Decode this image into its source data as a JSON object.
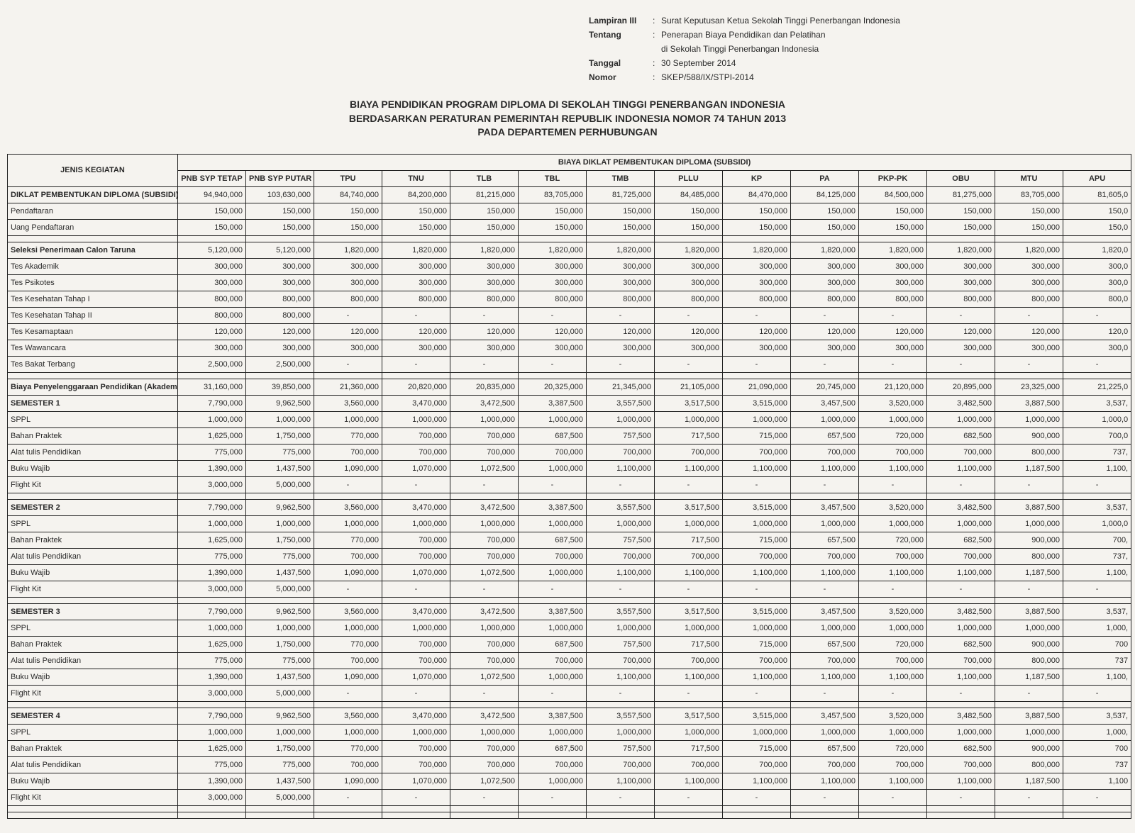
{
  "meta": {
    "lampiran_label": "Lampiran III",
    "lampiran_value": "Surat Keputusan Ketua Sekolah Tinggi Penerbangan Indonesia",
    "tentang_label": "Tentang",
    "tentang_value1": "Penerapan Biaya Pendidikan dan Pelatihan",
    "tentang_value2": "di Sekolah Tinggi Penerbangan Indonesia",
    "tanggal_label": "Tanggal",
    "tanggal_value": "30 September 2014",
    "nomor_label": "Nomor",
    "nomor_value": "SKEP/588/IX/STPI-2014"
  },
  "title": {
    "line1": "BIAYA PENDIDIKAN PROGRAM DIPLOMA DI SEKOLAH TINGGI PENERBANGAN INDONESIA",
    "line2": "BERDASARKAN  PERATURAN PEMERINTAH  REPUBLIK INDONESIA NOMOR 74 TAHUN 2013",
    "line3": "PADA DEPARTEMEN PERHUBUNGAN"
  },
  "table": {
    "head": {
      "col0": "JENIS KEGIATAN",
      "group": "BIAYA DIKLAT PEMBENTUKAN DIPLOMA  (SUBSIDI)",
      "cols": [
        "PNB SYP TETAP",
        "PNB SYP PUTAR",
        "TPU",
        "TNU",
        "TLB",
        "TBL",
        "TMB",
        "PLLU",
        "KP",
        "PA",
        "PKP-PK",
        "OBU",
        "MTU",
        "APU"
      ]
    },
    "rows": [
      {
        "bold": true,
        "label": "DIKLAT PEMBENTUKAN DIPLOMA (SUBSIDI)",
        "v": [
          "94,940,000",
          "103,630,000",
          "84,740,000",
          "84,200,000",
          "81,215,000",
          "83,705,000",
          "81,725,000",
          "84,485,000",
          "84,470,000",
          "84,125,000",
          "84,500,000",
          "81,275,000",
          "83,705,000",
          "81,605,0"
        ]
      },
      {
        "label": "Pendaftaran",
        "v": [
          "150,000",
          "150,000",
          "150,000",
          "150,000",
          "150,000",
          "150,000",
          "150,000",
          "150,000",
          "150,000",
          "150,000",
          "150,000",
          "150,000",
          "150,000",
          "150,0"
        ]
      },
      {
        "label": "Uang Pendaftaran",
        "v": [
          "150,000",
          "150,000",
          "150,000",
          "150,000",
          "150,000",
          "150,000",
          "150,000",
          "150,000",
          "150,000",
          "150,000",
          "150,000",
          "150,000",
          "150,000",
          "150,0"
        ]
      },
      {
        "blank": true
      },
      {
        "bold": true,
        "label": "Seleksi Penerimaan Calon Taruna",
        "v": [
          "5,120,000",
          "5,120,000",
          "1,820,000",
          "1,820,000",
          "1,820,000",
          "1,820,000",
          "1,820,000",
          "1,820,000",
          "1,820,000",
          "1,820,000",
          "1,820,000",
          "1,820,000",
          "1,820,000",
          "1,820,0"
        ]
      },
      {
        "label": "Tes Akademik",
        "v": [
          "300,000",
          "300,000",
          "300,000",
          "300,000",
          "300,000",
          "300,000",
          "300,000",
          "300,000",
          "300,000",
          "300,000",
          "300,000",
          "300,000",
          "300,000",
          "300,0"
        ]
      },
      {
        "label": "Tes Psikotes",
        "v": [
          "300,000",
          "300,000",
          "300,000",
          "300,000",
          "300,000",
          "300,000",
          "300,000",
          "300,000",
          "300,000",
          "300,000",
          "300,000",
          "300,000",
          "300,000",
          "300,0"
        ]
      },
      {
        "label": "Tes Kesehatan Tahap I",
        "v": [
          "800,000",
          "800,000",
          "800,000",
          "800,000",
          "800,000",
          "800,000",
          "800,000",
          "800,000",
          "800,000",
          "800,000",
          "800,000",
          "800,000",
          "800,000",
          "800,0"
        ]
      },
      {
        "label": "Tes Kesehatan Tahap II",
        "v": [
          "800,000",
          "800,000",
          "-",
          "-",
          "-",
          "-",
          "-",
          "-",
          "-",
          "-",
          "-",
          "-",
          "-",
          "-"
        ]
      },
      {
        "label": "Tes Kesamaptaan",
        "v": [
          "120,000",
          "120,000",
          "120,000",
          "120,000",
          "120,000",
          "120,000",
          "120,000",
          "120,000",
          "120,000",
          "120,000",
          "120,000",
          "120,000",
          "120,000",
          "120,0"
        ]
      },
      {
        "label": "Tes Wawancara",
        "v": [
          "300,000",
          "300,000",
          "300,000",
          "300,000",
          "300,000",
          "300,000",
          "300,000",
          "300,000",
          "300,000",
          "300,000",
          "300,000",
          "300,000",
          "300,000",
          "300,0"
        ]
      },
      {
        "label": "Tes Bakat Terbang",
        "v": [
          "2,500,000",
          "2,500,000",
          "-",
          "-",
          "-",
          "-",
          "-",
          "-",
          "-",
          "-",
          "-",
          "-",
          "-",
          "-"
        ]
      },
      {
        "blank": true
      },
      {
        "bold": true,
        "label": "Biaya Penyelenggaraan Pendidikan (Akademis)",
        "v": [
          "31,160,000",
          "39,850,000",
          "21,360,000",
          "20,820,000",
          "20,835,000",
          "20,325,000",
          "21,345,000",
          "21,105,000",
          "21,090,000",
          "20,745,000",
          "21,120,000",
          "20,895,000",
          "23,325,000",
          "21,225,0"
        ]
      },
      {
        "bold": true,
        "label": "SEMESTER 1",
        "v": [
          "7,790,000",
          "9,962,500",
          "3,560,000",
          "3,470,000",
          "3,472,500",
          "3,387,500",
          "3,557,500",
          "3,517,500",
          "3,515,000",
          "3,457,500",
          "3,520,000",
          "3,482,500",
          "3,887,500",
          "3,537,"
        ]
      },
      {
        "label": "SPPL",
        "v": [
          "1,000,000",
          "1,000,000",
          "1,000,000",
          "1,000,000",
          "1,000,000",
          "1,000,000",
          "1,000,000",
          "1,000,000",
          "1,000,000",
          "1,000,000",
          "1,000,000",
          "1,000,000",
          "1,000,000",
          "1,000,0"
        ]
      },
      {
        "label": "Bahan Praktek",
        "v": [
          "1,625,000",
          "1,750,000",
          "770,000",
          "700,000",
          "700,000",
          "687,500",
          "757,500",
          "717,500",
          "715,000",
          "657,500",
          "720,000",
          "682,500",
          "900,000",
          "700,0"
        ]
      },
      {
        "label": "Alat tulis Pendidikan",
        "v": [
          "775,000",
          "775,000",
          "700,000",
          "700,000",
          "700,000",
          "700,000",
          "700,000",
          "700,000",
          "700,000",
          "700,000",
          "700,000",
          "700,000",
          "800,000",
          "737,"
        ]
      },
      {
        "label": "Buku Wajib",
        "v": [
          "1,390,000",
          "1,437,500",
          "1,090,000",
          "1,070,000",
          "1,072,500",
          "1,000,000",
          "1,100,000",
          "1,100,000",
          "1,100,000",
          "1,100,000",
          "1,100,000",
          "1,100,000",
          "1,187,500",
          "1,100,"
        ]
      },
      {
        "label": "Flight Kit",
        "v": [
          "3,000,000",
          "5,000,000",
          "-",
          "-",
          "-",
          "-",
          "-",
          "-",
          "-",
          "-",
          "-",
          "-",
          "-",
          "-"
        ]
      },
      {
        "blank": true
      },
      {
        "bold": true,
        "label": "SEMESTER 2",
        "v": [
          "7,790,000",
          "9,962,500",
          "3,560,000",
          "3,470,000",
          "3,472,500",
          "3,387,500",
          "3,557,500",
          "3,517,500",
          "3,515,000",
          "3,457,500",
          "3,520,000",
          "3,482,500",
          "3,887,500",
          "3,537,"
        ]
      },
      {
        "label": "SPPL",
        "v": [
          "1,000,000",
          "1,000,000",
          "1,000,000",
          "1,000,000",
          "1,000,000",
          "1,000,000",
          "1,000,000",
          "1,000,000",
          "1,000,000",
          "1,000,000",
          "1,000,000",
          "1,000,000",
          "1,000,000",
          "1,000,0"
        ]
      },
      {
        "label": "Bahan Praktek",
        "v": [
          "1,625,000",
          "1,750,000",
          "770,000",
          "700,000",
          "700,000",
          "687,500",
          "757,500",
          "717,500",
          "715,000",
          "657,500",
          "720,000",
          "682,500",
          "900,000",
          "700,"
        ]
      },
      {
        "label": "Alat tulis Pendidikan",
        "v": [
          "775,000",
          "775,000",
          "700,000",
          "700,000",
          "700,000",
          "700,000",
          "700,000",
          "700,000",
          "700,000",
          "700,000",
          "700,000",
          "700,000",
          "800,000",
          "737,"
        ]
      },
      {
        "label": "Buku Wajib",
        "v": [
          "1,390,000",
          "1,437,500",
          "1,090,000",
          "1,070,000",
          "1,072,500",
          "1,000,000",
          "1,100,000",
          "1,100,000",
          "1,100,000",
          "1,100,000",
          "1,100,000",
          "1,100,000",
          "1,187,500",
          "1,100,"
        ]
      },
      {
        "label": "Flight Kit",
        "v": [
          "3,000,000",
          "5,000,000",
          "-",
          "-",
          "-",
          "-",
          "-",
          "-",
          "-",
          "-",
          "-",
          "-",
          "-",
          "-"
        ]
      },
      {
        "blank": true
      },
      {
        "bold": true,
        "label": "SEMESTER 3",
        "v": [
          "7,790,000",
          "9,962,500",
          "3,560,000",
          "3,470,000",
          "3,472,500",
          "3,387,500",
          "3,557,500",
          "3,517,500",
          "3,515,000",
          "3,457,500",
          "3,520,000",
          "3,482,500",
          "3,887,500",
          "3,537,"
        ]
      },
      {
        "label": "SPPL",
        "v": [
          "1,000,000",
          "1,000,000",
          "1,000,000",
          "1,000,000",
          "1,000,000",
          "1,000,000",
          "1,000,000",
          "1,000,000",
          "1,000,000",
          "1,000,000",
          "1,000,000",
          "1,000,000",
          "1,000,000",
          "1,000,"
        ]
      },
      {
        "label": "Bahan Praktek",
        "v": [
          "1,625,000",
          "1,750,000",
          "770,000",
          "700,000",
          "700,000",
          "687,500",
          "757,500",
          "717,500",
          "715,000",
          "657,500",
          "720,000",
          "682,500",
          "900,000",
          "700"
        ]
      },
      {
        "label": "Alat tulis Pendidikan",
        "v": [
          "775,000",
          "775,000",
          "700,000",
          "700,000",
          "700,000",
          "700,000",
          "700,000",
          "700,000",
          "700,000",
          "700,000",
          "700,000",
          "700,000",
          "800,000",
          "737"
        ]
      },
      {
        "label": "Buku Wajib",
        "v": [
          "1,390,000",
          "1,437,500",
          "1,090,000",
          "1,070,000",
          "1,072,500",
          "1,000,000",
          "1,100,000",
          "1,100,000",
          "1,100,000",
          "1,100,000",
          "1,100,000",
          "1,100,000",
          "1,187,500",
          "1,100,"
        ]
      },
      {
        "label": "Flight Kit",
        "v": [
          "3,000,000",
          "5,000,000",
          "-",
          "-",
          "-",
          "-",
          "-",
          "-",
          "-",
          "-",
          "-",
          "-",
          "-",
          "-"
        ]
      },
      {
        "blank": true
      },
      {
        "bold": true,
        "label": "SEMESTER 4",
        "v": [
          "7,790,000",
          "9,962,500",
          "3,560,000",
          "3,470,000",
          "3,472,500",
          "3,387,500",
          "3,557,500",
          "3,517,500",
          "3,515,000",
          "3,457,500",
          "3,520,000",
          "3,482,500",
          "3,887,500",
          "3,537,"
        ]
      },
      {
        "label": "SPPL",
        "v": [
          "1,000,000",
          "1,000,000",
          "1,000,000",
          "1,000,000",
          "1,000,000",
          "1,000,000",
          "1,000,000",
          "1,000,000",
          "1,000,000",
          "1,000,000",
          "1,000,000",
          "1,000,000",
          "1,000,000",
          "1,000,"
        ]
      },
      {
        "label": "Bahan Praktek",
        "v": [
          "1,625,000",
          "1,750,000",
          "770,000",
          "700,000",
          "700,000",
          "687,500",
          "757,500",
          "717,500",
          "715,000",
          "657,500",
          "720,000",
          "682,500",
          "900,000",
          "700"
        ]
      },
      {
        "label": "Alat tulis Pendidikan",
        "v": [
          "775,000",
          "775,000",
          "700,000",
          "700,000",
          "700,000",
          "700,000",
          "700,000",
          "700,000",
          "700,000",
          "700,000",
          "700,000",
          "700,000",
          "800,000",
          "737"
        ]
      },
      {
        "label": "Buku Wajib",
        "v": [
          "1,390,000",
          "1,437,500",
          "1,090,000",
          "1,070,000",
          "1,072,500",
          "1,000,000",
          "1,100,000",
          "1,100,000",
          "1,100,000",
          "1,100,000",
          "1,100,000",
          "1,100,000",
          "1,187,500",
          "1,100"
        ]
      },
      {
        "label": "Flight Kit",
        "v": [
          "3,000,000",
          "5,000,000",
          "-",
          "-",
          "-",
          "-",
          "-",
          "-",
          "-",
          "-",
          "-",
          "-",
          "-",
          "-"
        ]
      },
      {
        "blank": true
      },
      {
        "blank": true
      }
    ]
  }
}
